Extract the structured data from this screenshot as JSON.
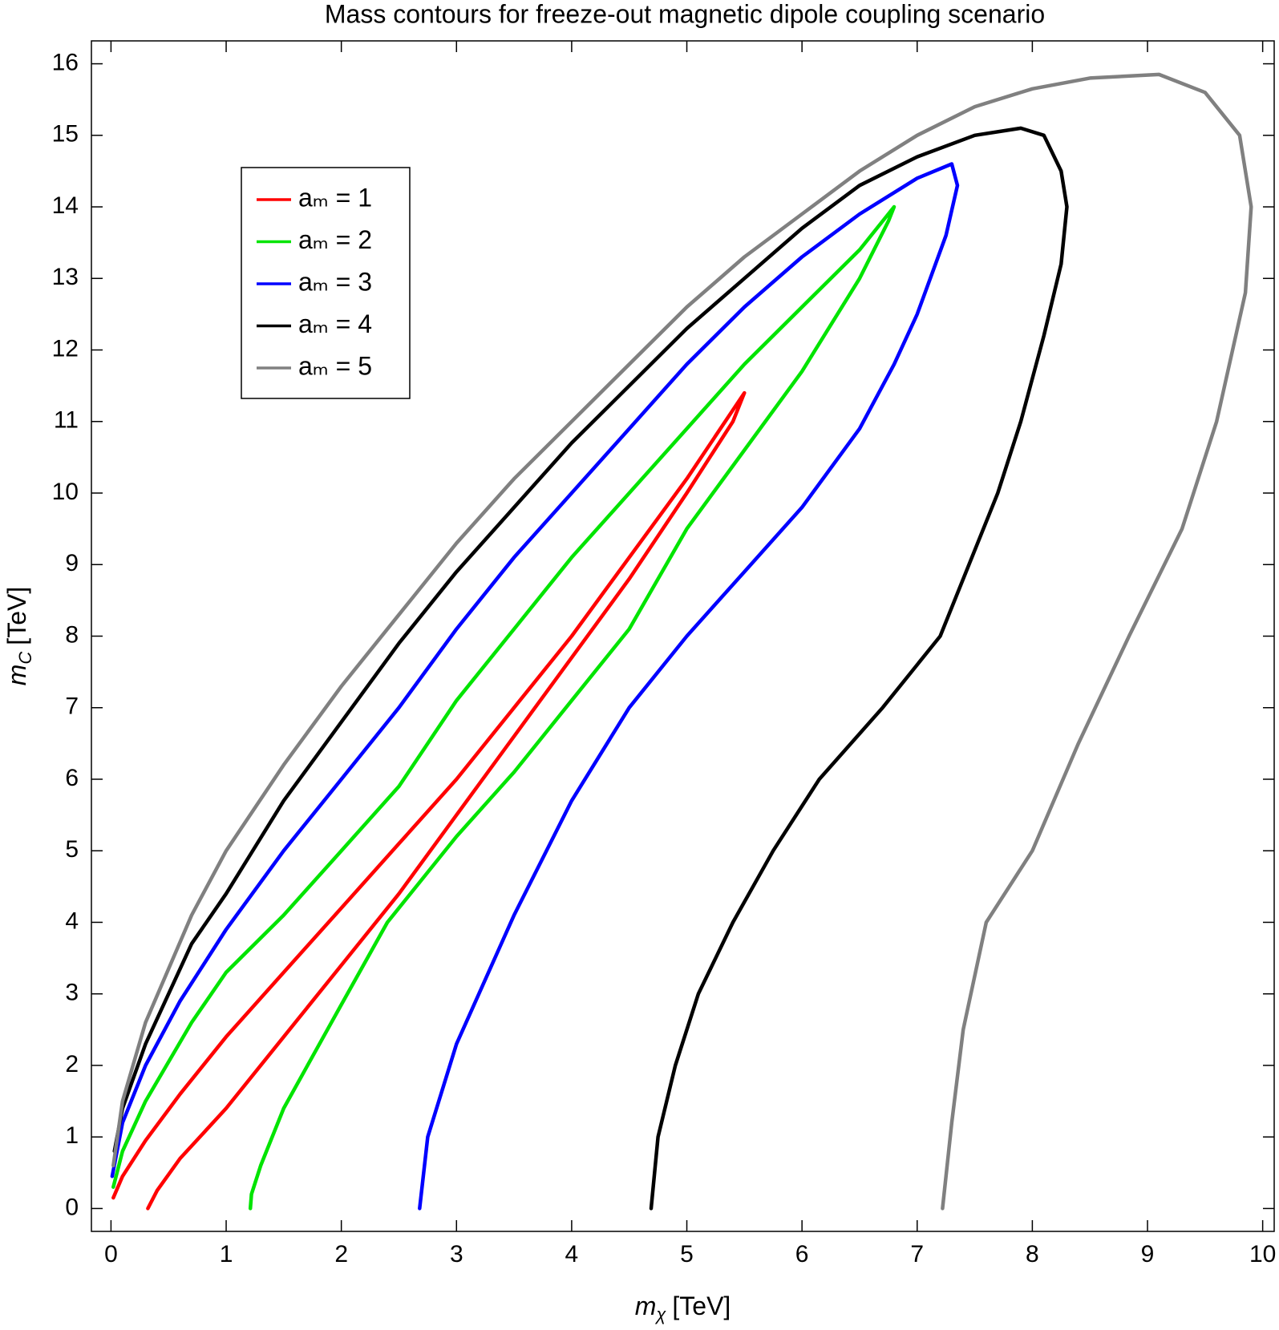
{
  "chart_data": {
    "type": "line",
    "title": "Mass contours for freeze-out magnetic dipole coupling scenario",
    "x_label": {
      "text": "m",
      "subscript": "χ",
      "unit": "[TeV]"
    },
    "y_label": {
      "text": "m",
      "subscript": "C",
      "unit": "[TeV]"
    },
    "xlim": [
      -0.17,
      10.1
    ],
    "ylim": [
      -0.32,
      16.32
    ],
    "xticks": [
      0,
      1,
      2,
      3,
      4,
      5,
      6,
      7,
      8,
      9,
      10
    ],
    "yticks": [
      0,
      1,
      2,
      3,
      4,
      5,
      6,
      7,
      8,
      9,
      10,
      11,
      12,
      13,
      14,
      15,
      16
    ],
    "legend": "upper left",
    "series": [
      {
        "name": "aₘ = 1",
        "color": "#ff0000",
        "x": [
          0.02,
          0.1,
          0.3,
          0.6,
          1,
          1.5,
          2,
          2.5,
          3,
          3.5,
          4,
          4.5,
          5,
          5.5,
          5.4,
          5,
          4.5,
          4,
          3.5,
          3,
          2.5,
          2,
          1.5,
          1,
          0.6,
          0.4,
          0.32
        ],
        "y": [
          0.15,
          0.45,
          0.95,
          1.6,
          2.4,
          3.3,
          4.2,
          5.1,
          6.0,
          7.0,
          8.0,
          9.1,
          10.2,
          11.4,
          11.0,
          10.0,
          8.8,
          7.7,
          6.6,
          5.5,
          4.4,
          3.4,
          2.4,
          1.4,
          0.7,
          0.25,
          0
        ]
      },
      {
        "name": "aₘ = 2",
        "color": "#00e400",
        "x": [
          0.02,
          0.1,
          0.3,
          0.7,
          1.0,
          1.5,
          2,
          2.5,
          3,
          3.5,
          4,
          4.5,
          5,
          5.5,
          6,
          6.5,
          6.8,
          6.75,
          6.5,
          6.0,
          5.5,
          5,
          4.5,
          4,
          3.5,
          3,
          2.4,
          2,
          1.5,
          1.3,
          1.22,
          1.21
        ],
        "y": [
          0.3,
          0.8,
          1.5,
          2.6,
          3.3,
          4.1,
          5.0,
          5.9,
          7.1,
          8.1,
          9.1,
          10.0,
          10.9,
          11.8,
          12.6,
          13.4,
          14.0,
          13.8,
          13.0,
          11.7,
          10.6,
          9.5,
          8.1,
          7.1,
          6.1,
          5.2,
          4.0,
          2.85,
          1.4,
          0.6,
          0.2,
          0
        ]
      },
      {
        "name": "aₘ = 3",
        "color": "#0000ff",
        "x": [
          0.01,
          0.1,
          0.3,
          0.6,
          1,
          1.5,
          2,
          2.5,
          3,
          3.5,
          4,
          4.5,
          5,
          5.5,
          6,
          6.5,
          7,
          7.3,
          7.35,
          7.25,
          7.0,
          6.8,
          6.5,
          6,
          5.5,
          5,
          4.5,
          4,
          3.5,
          3,
          2.75,
          2.68
        ],
        "y": [
          0.45,
          1.2,
          2.0,
          2.9,
          3.9,
          5.0,
          6.0,
          7.0,
          8.1,
          9.1,
          10.0,
          10.9,
          11.8,
          12.6,
          13.3,
          13.9,
          14.4,
          14.6,
          14.3,
          13.6,
          12.5,
          11.8,
          10.9,
          9.8,
          8.9,
          8.0,
          7.0,
          5.7,
          4.1,
          2.3,
          1.0,
          0
        ]
      },
      {
        "name": "aₘ = 4",
        "color": "#000000",
        "x": [
          0.03,
          0.1,
          0.3,
          0.7,
          1,
          1.5,
          2,
          2.5,
          3,
          3.5,
          4,
          4.5,
          5,
          5.5,
          6,
          6.5,
          7,
          7.5,
          7.9,
          8.1,
          8.25,
          8.3,
          8.25,
          8.1,
          7.9,
          7.7,
          7.2,
          6.7,
          6.15,
          5.75,
          5.4,
          5.1,
          4.9,
          4.75,
          4.69
        ],
        "y": [
          0.8,
          1.4,
          2.3,
          3.7,
          4.4,
          5.7,
          6.8,
          7.9,
          8.9,
          9.8,
          10.7,
          11.5,
          12.3,
          13.0,
          13.7,
          14.3,
          14.7,
          15.0,
          15.1,
          15.0,
          14.5,
          14.0,
          13.2,
          12.2,
          11.0,
          10.0,
          8.0,
          7.0,
          6.0,
          5.0,
          4.0,
          3.0,
          2.0,
          1.0,
          0
        ]
      },
      {
        "name": "aₘ = 5",
        "color": "#808080",
        "x": [
          0.02,
          0.1,
          0.3,
          0.7,
          1,
          1.5,
          2,
          2.5,
          3,
          3.5,
          4,
          4.5,
          5,
          5.5,
          6,
          6.5,
          7,
          7.5,
          8,
          8.5,
          9.1,
          9.5,
          9.8,
          9.9,
          9.85,
          9.6,
          9.3,
          8.84,
          8.4,
          8.0,
          7.6,
          7.4,
          7.3,
          7.22
        ],
        "y": [
          0.6,
          1.5,
          2.6,
          4.1,
          5.0,
          6.2,
          7.3,
          8.3,
          9.3,
          10.2,
          11.0,
          11.8,
          12.6,
          13.3,
          13.9,
          14.5,
          15.0,
          15.4,
          15.65,
          15.8,
          15.85,
          15.6,
          15.0,
          14.0,
          12.8,
          11.0,
          9.5,
          8.0,
          6.5,
          5.0,
          4.0,
          2.5,
          1.2,
          0
        ]
      }
    ]
  }
}
